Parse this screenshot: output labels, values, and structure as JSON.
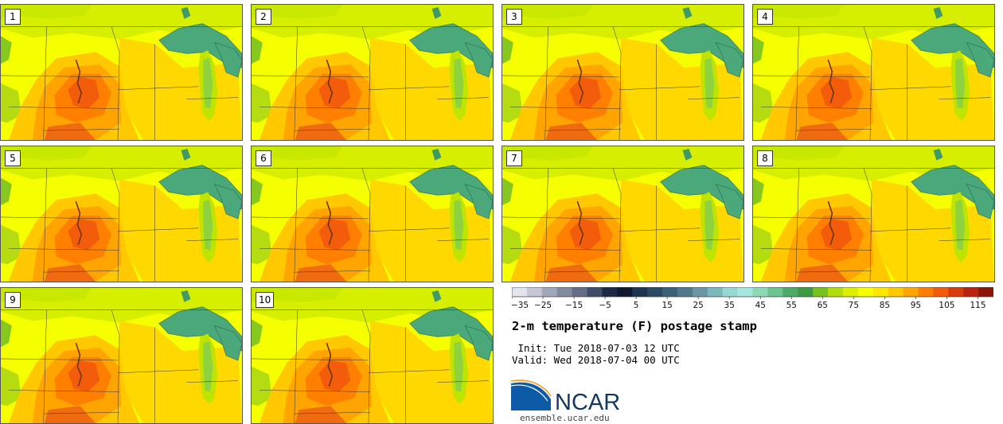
{
  "chart_data": {
    "type": "heatmap",
    "title": "2-m temperature (F) postage stamp",
    "init_line": " Init: Tue 2018-07-03 12 UTC",
    "valid_line": "Valid: Wed 2018-07-04 00 UTC",
    "members": [
      "1",
      "2",
      "3",
      "4",
      "5",
      "6",
      "7",
      "8",
      "9",
      "10"
    ],
    "colorbar": {
      "vmin": -35,
      "vmax": 120,
      "step": 5,
      "tick_labels": [
        "−35",
        "−25",
        "−15",
        "−5",
        "5",
        "15",
        "25",
        "35",
        "45",
        "55",
        "65",
        "75",
        "85",
        "95",
        "105",
        "115"
      ],
      "colors": [
        "#e3e5ee",
        "#c4c8d6",
        "#a2a8bb",
        "#828aa0",
        "#646e87",
        "#3f4d69",
        "#1c2a45",
        "#0f1a30",
        "#1d3550",
        "#2c4a66",
        "#3d6079",
        "#50778c",
        "#6896a3",
        "#7fb8bc",
        "#96d8d2",
        "#a6e8de",
        "#8ed8b4",
        "#6cc48e",
        "#4aac68",
        "#3e9a42",
        "#78c21f",
        "#b2dc0e",
        "#dcef00",
        "#f7ff00",
        "#ffe800",
        "#ffc800",
        "#ffa400",
        "#ff7e00",
        "#f25c0a",
        "#d83c0e",
        "#b8250e",
        "#8c1708"
      ]
    }
  },
  "branding": {
    "logo_text": "NCAR",
    "website": "ensemble.ucar.edu"
  },
  "colors": {
    "field_base": "#f6ff00",
    "field_warm": "#ffc800",
    "field_hot": "#ff8c00",
    "field_hottest": "#f05a0a",
    "field_cool": "#cdeb00",
    "field_green": "#86c81e",
    "lake": "#4aa87a",
    "ncar_blue": "#0d5aa7",
    "ncar_navy": "#13375f"
  }
}
